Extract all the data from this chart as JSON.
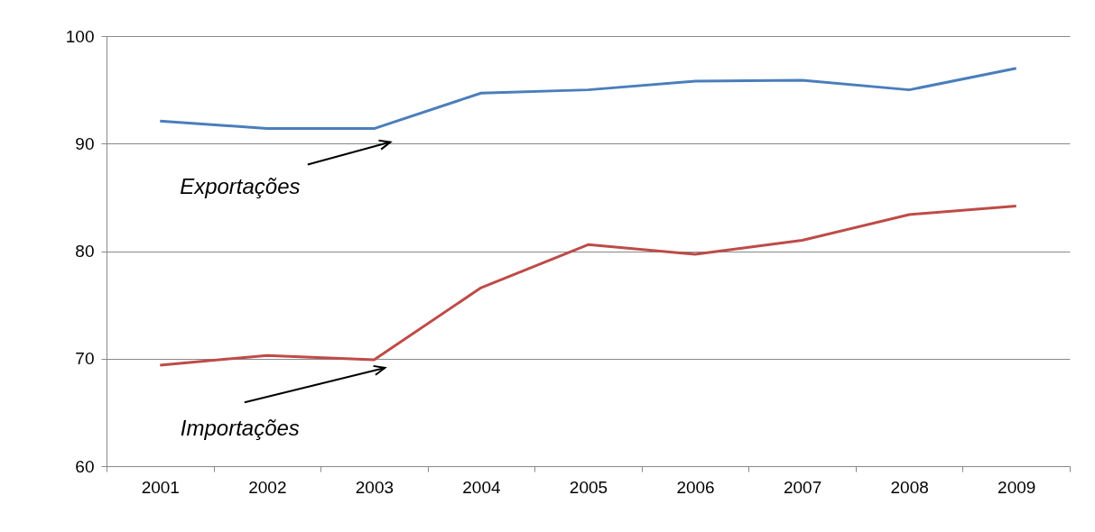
{
  "chart_data": {
    "type": "line",
    "categories": [
      "2001",
      "2002",
      "2003",
      "2004",
      "2005",
      "2006",
      "2007",
      "2008",
      "2009"
    ],
    "series": [
      {
        "name": "Exportações",
        "color": "#4a7ebb",
        "values": [
          92.1,
          91.4,
          91.4,
          94.7,
          95.0,
          95.8,
          95.9,
          95.0,
          97.0
        ]
      },
      {
        "name": "Importações",
        "color": "#be4b48",
        "values": [
          69.4,
          70.3,
          69.9,
          76.6,
          80.6,
          79.7,
          81.0,
          83.4,
          84.2
        ]
      }
    ],
    "ylim": [
      60,
      100
    ],
    "yticks": [
      60,
      70,
      80,
      90,
      100
    ],
    "grid": "y",
    "legend": false
  }
}
